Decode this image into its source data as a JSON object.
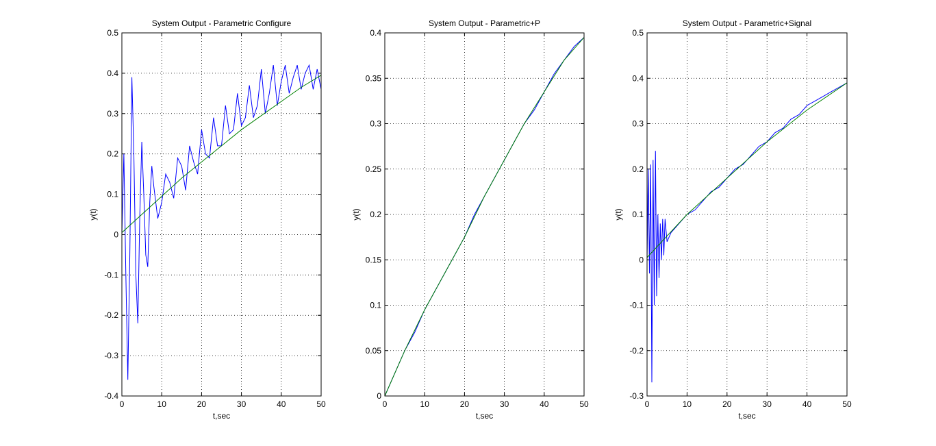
{
  "chart_data": [
    {
      "type": "line",
      "title": "System Output - Parametric Configure",
      "xlabel": "t,sec",
      "ylabel": "y(t)",
      "xlim": [
        0,
        50
      ],
      "ylim": [
        -0.4,
        0.5
      ],
      "xticks": [
        "0",
        "10",
        "20",
        "30",
        "40",
        "50"
      ],
      "yticks": [
        "-0.4",
        "-0.3",
        "-0.2",
        "-0.1",
        "0",
        "0.1",
        "0.2",
        "0.3",
        "0.4",
        "0.5"
      ],
      "grid": true,
      "series": [
        {
          "color": "#0000ff",
          "x": [
            0,
            0.5,
            1,
            1.5,
            2,
            2.5,
            3,
            3.5,
            4,
            4.5,
            5,
            5.5,
            6,
            6.5,
            7,
            7.5,
            8,
            9,
            10,
            11,
            12,
            13,
            14,
            15,
            16,
            17,
            18,
            19,
            20,
            21,
            22,
            23,
            24,
            25,
            26,
            27,
            28,
            29,
            30,
            31,
            32,
            33,
            34,
            35,
            36,
            37,
            38,
            39,
            40,
            41,
            42,
            43,
            44,
            45,
            46,
            47,
            48,
            49,
            50
          ],
          "y": [
            0,
            0.2,
            -0.1,
            -0.36,
            -0.05,
            0.39,
            0.2,
            -0.1,
            -0.22,
            0.05,
            0.23,
            0.1,
            -0.05,
            -0.08,
            0.08,
            0.17,
            0.12,
            0.04,
            0.08,
            0.15,
            0.13,
            0.09,
            0.19,
            0.17,
            0.11,
            0.22,
            0.18,
            0.15,
            0.26,
            0.2,
            0.19,
            0.29,
            0.22,
            0.22,
            0.32,
            0.25,
            0.26,
            0.35,
            0.27,
            0.29,
            0.37,
            0.29,
            0.32,
            0.41,
            0.3,
            0.35,
            0.42,
            0.32,
            0.38,
            0.42,
            0.35,
            0.39,
            0.42,
            0.36,
            0.4,
            0.42,
            0.36,
            0.41,
            0.36
          ]
        },
        {
          "color": "#008000",
          "x": [
            0,
            5,
            10,
            15,
            20,
            25,
            30,
            35,
            40,
            45,
            50
          ],
          "y": [
            0.005,
            0.05,
            0.095,
            0.14,
            0.18,
            0.22,
            0.26,
            0.295,
            0.33,
            0.365,
            0.395
          ]
        }
      ]
    },
    {
      "type": "line",
      "title": "System Output - Parametric+P",
      "xlabel": "t,sec",
      "ylabel": "y(t)",
      "xlim": [
        0,
        50
      ],
      "ylim": [
        0,
        0.4
      ],
      "xticks": [
        "0",
        "10",
        "20",
        "30",
        "40",
        "50"
      ],
      "yticks": [
        "0",
        "0.05",
        "0.1",
        "0.15",
        "0.2",
        "0.25",
        "0.3",
        "0.35",
        "0.4"
      ],
      "grid": true,
      "series": [
        {
          "color": "#0000ff",
          "x": [
            0,
            2.5,
            5,
            7.5,
            10,
            12.5,
            15,
            17.5,
            20,
            22.5,
            25,
            27.5,
            30,
            32.5,
            35,
            37.5,
            40,
            42.5,
            45,
            47.5,
            50
          ],
          "y": [
            0,
            0.025,
            0.05,
            0.07,
            0.095,
            0.115,
            0.135,
            0.155,
            0.175,
            0.2,
            0.22,
            0.24,
            0.26,
            0.28,
            0.3,
            0.315,
            0.335,
            0.355,
            0.37,
            0.385,
            0.395
          ]
        },
        {
          "color": "#008000",
          "x": [
            0,
            5,
            10,
            15,
            20,
            25,
            30,
            35,
            40,
            45,
            50
          ],
          "y": [
            0,
            0.05,
            0.095,
            0.135,
            0.175,
            0.22,
            0.26,
            0.3,
            0.335,
            0.37,
            0.395
          ]
        }
      ]
    },
    {
      "type": "line",
      "title": "System Output - Parametric+Signal",
      "xlabel": "t,sec",
      "ylabel": "y(t)",
      "xlim": [
        0,
        50
      ],
      "ylim": [
        -0.3,
        0.5
      ],
      "xticks": [
        "0",
        "10",
        "20",
        "30",
        "40",
        "50"
      ],
      "yticks": [
        "-0.3",
        "-0.2",
        "-0.1",
        "0",
        "0.1",
        "0.2",
        "0.3",
        "0.4",
        "0.5"
      ],
      "grid": true,
      "series": [
        {
          "color": "#0000ff",
          "x": [
            0,
            0.3,
            0.6,
            0.9,
            1.2,
            1.5,
            1.8,
            2.1,
            2.4,
            2.7,
            3.0,
            3.3,
            3.6,
            3.9,
            4.2,
            4.5,
            5,
            6,
            7,
            8,
            9,
            10,
            12,
            14,
            16,
            18,
            20,
            22,
            24,
            26,
            28,
            30,
            32,
            34,
            36,
            38,
            40,
            42,
            44,
            46,
            48,
            50
          ],
          "y": [
            0,
            0.2,
            -0.03,
            0.21,
            -0.27,
            0.22,
            -0.1,
            0.24,
            -0.08,
            0.1,
            -0.04,
            0.08,
            0.0,
            0.09,
            0.01,
            0.09,
            0.04,
            0.06,
            0.07,
            0.08,
            0.09,
            0.1,
            0.11,
            0.13,
            0.15,
            0.16,
            0.18,
            0.2,
            0.21,
            0.23,
            0.25,
            0.26,
            0.28,
            0.29,
            0.31,
            0.32,
            0.34,
            0.35,
            0.36,
            0.37,
            0.38,
            0.39
          ]
        },
        {
          "color": "#008000",
          "x": [
            0,
            10,
            20,
            30,
            40,
            50
          ],
          "y": [
            0.005,
            0.1,
            0.18,
            0.26,
            0.33,
            0.39
          ]
        }
      ]
    }
  ]
}
